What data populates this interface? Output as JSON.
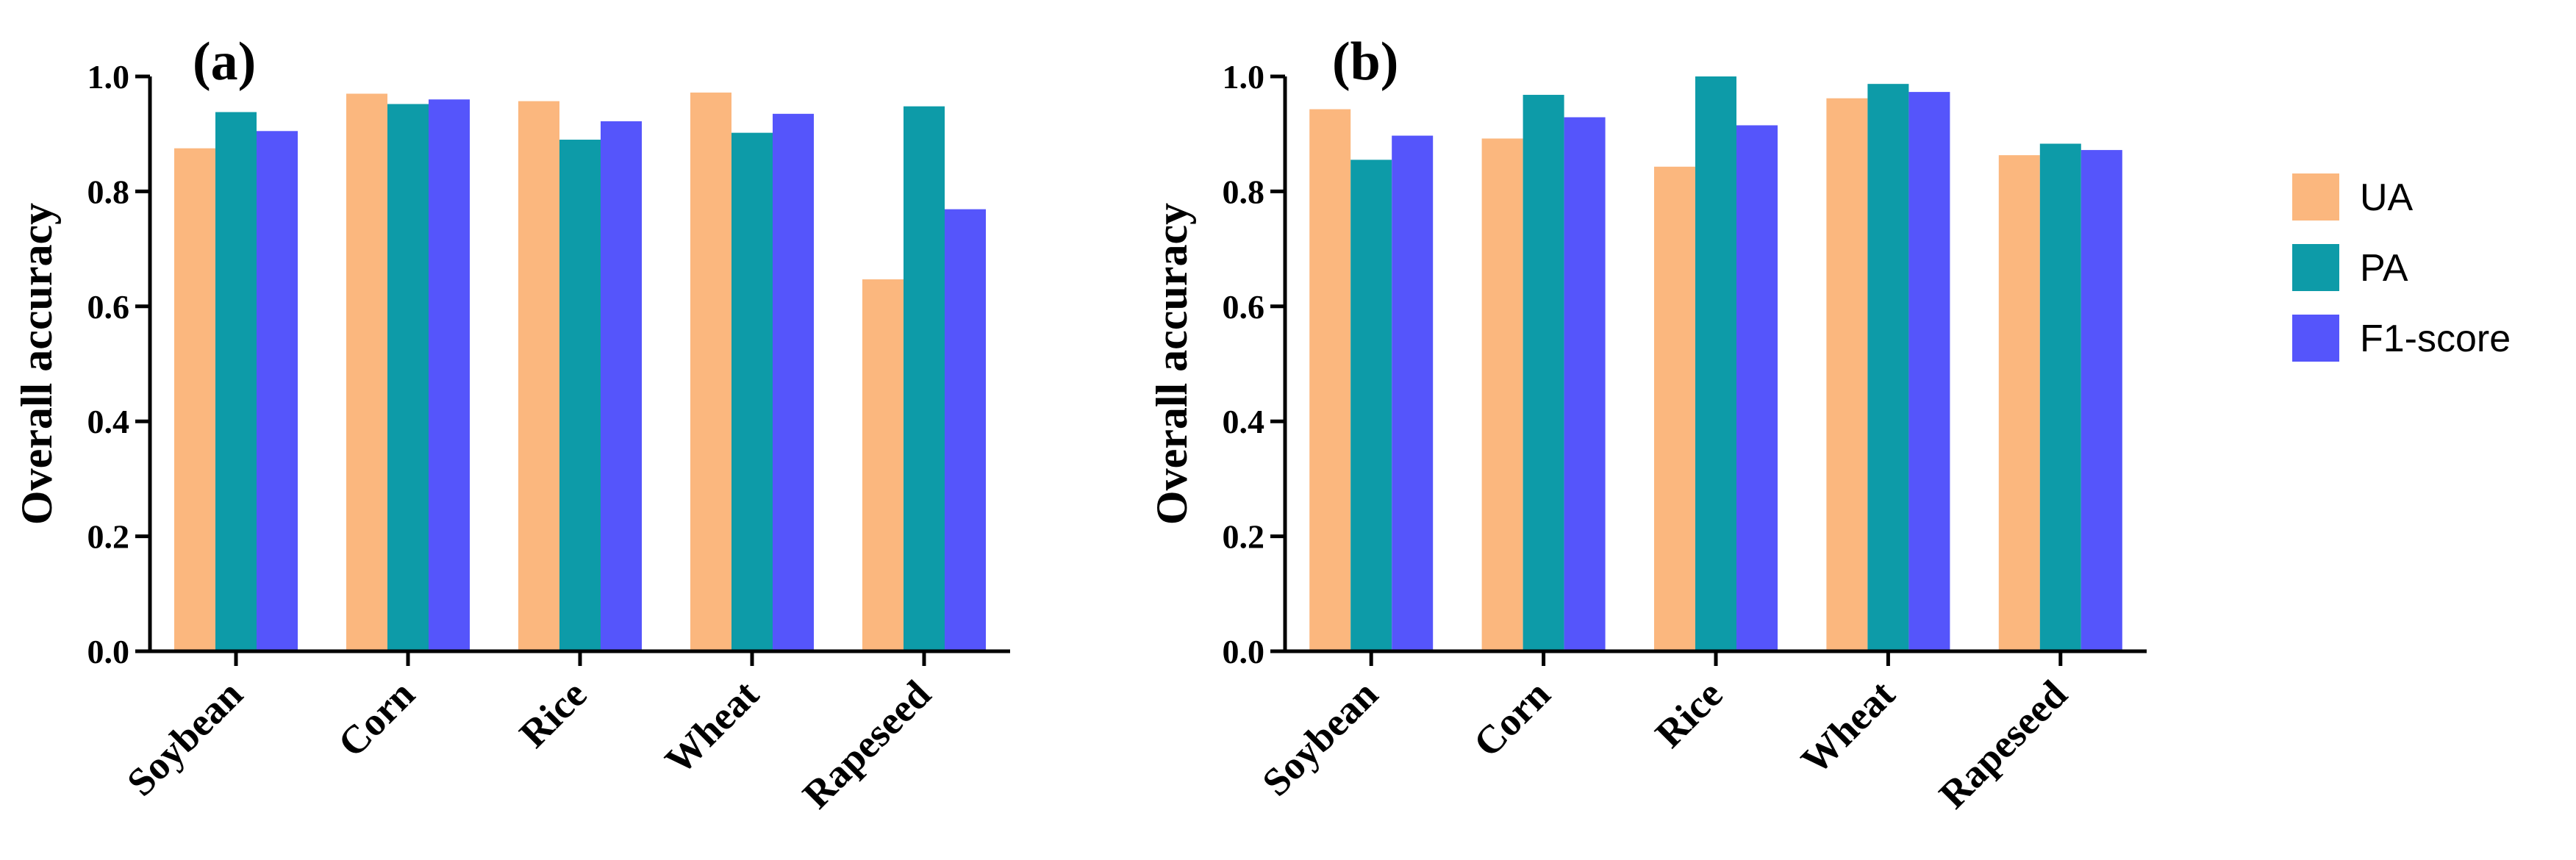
{
  "chart_data": [
    {
      "type": "bar",
      "panel_label": "(a)",
      "ylabel": "Overall accuracy",
      "xlabel": "",
      "ylim": [
        0,
        1.0
      ],
      "yticks": [
        "0.0",
        "0.2",
        "0.4",
        "0.6",
        "0.8",
        "1.0"
      ],
      "categories": [
        "Soybean",
        "Corn",
        "Rice",
        "Wheat",
        "Rapeseed"
      ],
      "series": [
        {
          "name": "UA",
          "values": [
            0.875,
            0.97,
            0.957,
            0.972,
            0.647
          ]
        },
        {
          "name": "PA",
          "values": [
            0.938,
            0.952,
            0.89,
            0.902,
            0.948
          ]
        },
        {
          "name": "F1-score",
          "values": [
            0.905,
            0.96,
            0.922,
            0.935,
            0.769
          ]
        }
      ],
      "grid": false
    },
    {
      "type": "bar",
      "panel_label": "(b)",
      "ylabel": "Overall accuracy",
      "xlabel": "",
      "ylim": [
        0,
        1.0
      ],
      "yticks": [
        "0.0",
        "0.2",
        "0.4",
        "0.6",
        "0.8",
        "1.0"
      ],
      "categories": [
        "Soybean",
        "Corn",
        "Rice",
        "Wheat",
        "Rapeseed"
      ],
      "series": [
        {
          "name": "UA",
          "values": [
            0.943,
            0.892,
            0.843,
            0.962,
            0.863
          ]
        },
        {
          "name": "PA",
          "values": [
            0.855,
            0.968,
            1.0,
            0.987,
            0.883
          ]
        },
        {
          "name": "F1-score",
          "values": [
            0.897,
            0.929,
            0.915,
            0.973,
            0.872
          ]
        }
      ],
      "grid": false
    }
  ],
  "legend": {
    "placement": "right",
    "entries": [
      {
        "label": "UA",
        "color": "#FBB77E"
      },
      {
        "label": "PA",
        "color": "#0D9BA8"
      },
      {
        "label": "F1-score",
        "color": "#5555FB"
      }
    ]
  }
}
